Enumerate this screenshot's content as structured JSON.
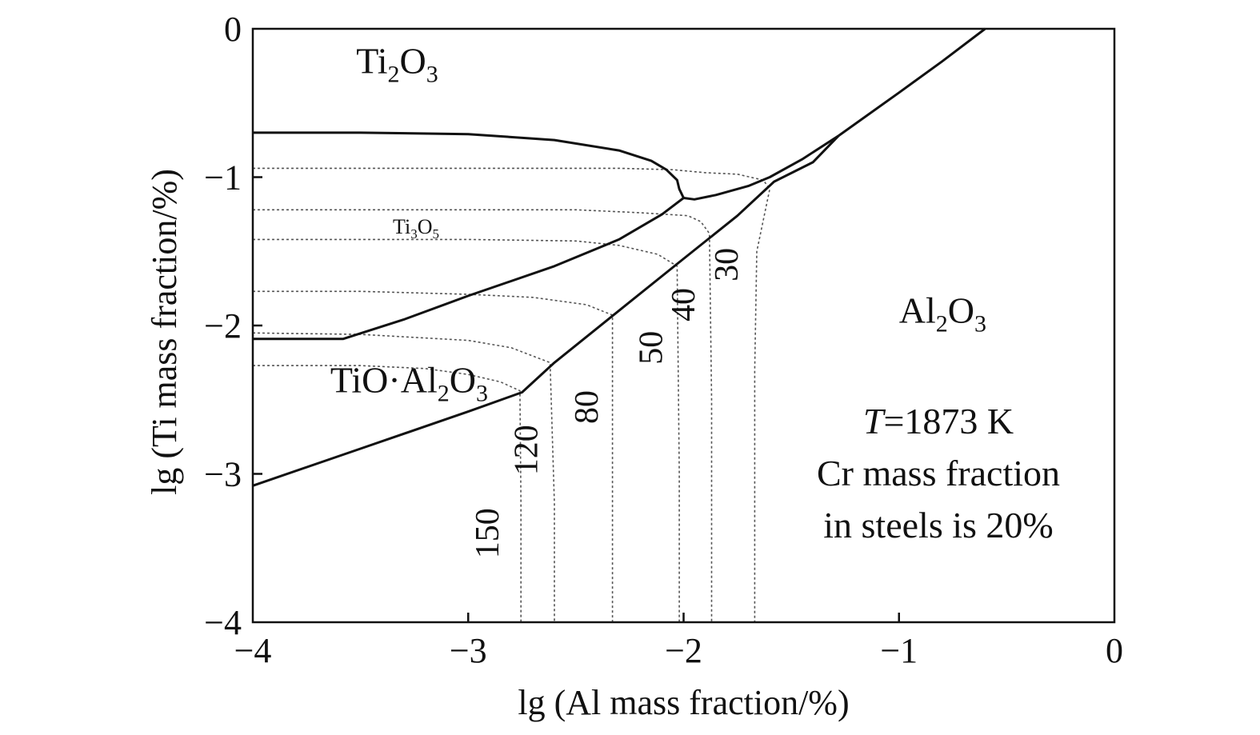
{
  "chart_data": {
    "type": "line",
    "xlabel": "lg (Al mass fraction/%)",
    "ylabel": "lg (Ti mass fraction/%)",
    "xlim": [
      -4,
      0
    ],
    "ylim": [
      -4,
      0
    ],
    "x_ticks": [
      -4,
      -3,
      -2,
      -1,
      0
    ],
    "y_ticks": [
      0,
      -1,
      -2,
      -3,
      -4
    ],
    "x_tick_labels": [
      "−4",
      "−3",
      "−2",
      "−1",
      "0"
    ],
    "y_tick_labels": [
      "0",
      "−1",
      "−2",
      "−3",
      "−4"
    ],
    "grid": false,
    "regions": [
      {
        "id": "ti2o3",
        "main": "Ti",
        "sub1": "2",
        "mid": "O",
        "sub2": "3",
        "x": -3.52,
        "y": -0.3,
        "size": 46
      },
      {
        "id": "ti3o5",
        "main": "Ti",
        "sub1": "3",
        "mid": "O",
        "sub2": "5",
        "x": -3.35,
        "y": -1.38,
        "size": 26
      },
      {
        "id": "al2o3",
        "main": "Al",
        "sub1": "2",
        "mid": "O",
        "sub2": "3",
        "x": -1.0,
        "y": -1.98,
        "size": 46
      },
      {
        "id": "tio-al2o3",
        "main": "TiO·Al",
        "sub1": "2",
        "mid": "O",
        "sub2": "3",
        "x": -3.64,
        "y": -2.45,
        "size": 46
      }
    ],
    "annotations": {
      "temperature_var": "T",
      "temperature_rest": "=1873 K",
      "line2": "Cr mass fraction",
      "line3": "in steels is 20%"
    },
    "boundary_series": [
      {
        "id": "ti2o3-ti3o5",
        "x": [
          -4.0,
          -3.5,
          -3.0,
          -2.6,
          -2.3,
          -2.15,
          -2.08,
          -2.03,
          -2.02,
          -2.0
        ],
        "y": [
          -0.7,
          -0.7,
          -0.71,
          -0.75,
          -0.82,
          -0.89,
          -0.95,
          -1.02,
          -1.08,
          -1.14
        ]
      },
      {
        "id": "upper-wedge",
        "x": [
          -2.0,
          -1.95,
          -1.85,
          -1.7,
          -1.6,
          -1.45,
          -1.28
        ],
        "y": [
          -1.14,
          -1.15,
          -1.12,
          -1.06,
          -1.0,
          -0.88,
          -0.72
        ]
      },
      {
        "id": "ti3o5-tio-al2o3",
        "x": [
          -4.0,
          -3.58,
          -3.3,
          -3.0,
          -2.6,
          -2.3,
          -2.1,
          -2.0
        ],
        "y": [
          -2.09,
          -2.09,
          -1.96,
          -1.8,
          -1.6,
          -1.42,
          -1.25,
          -1.14
        ]
      },
      {
        "id": "tio-al2o3-al2o3",
        "x": [
          -4.0,
          -3.5,
          -3.0,
          -2.75,
          -2.6,
          -2.3,
          -2.0,
          -1.75,
          -1.58,
          -1.4,
          -1.28
        ],
        "y": [
          -3.08,
          -2.83,
          -2.58,
          -2.45,
          -2.25,
          -1.9,
          -1.55,
          -1.26,
          -1.03,
          -0.9,
          -0.72
        ]
      },
      {
        "id": "al2o3-upper",
        "x": [
          -1.28,
          -1.0,
          -0.8,
          -0.6
        ],
        "y": [
          -0.72,
          -0.43,
          -0.22,
          0.0
        ]
      }
    ],
    "contour_series": [
      {
        "name": "150",
        "x": [
          -4.0,
          -3.5,
          -3.2,
          -3.0,
          -2.85,
          -2.76,
          -2.755,
          -2.755
        ],
        "y": [
          -2.27,
          -2.27,
          -2.29,
          -2.33,
          -2.38,
          -2.44,
          -3.2,
          -4.0
        ]
      },
      {
        "name": "120",
        "x": [
          -4.0,
          -3.5,
          -3.0,
          -2.8,
          -2.62,
          -2.6,
          -2.6
        ],
        "y": [
          -2.05,
          -2.06,
          -2.1,
          -2.15,
          -2.25,
          -3.2,
          -4.0
        ]
      },
      {
        "name": "80",
        "x": [
          -4.0,
          -3.5,
          -3.0,
          -2.7,
          -2.45,
          -2.33,
          -2.33,
          -2.33
        ],
        "y": [
          -1.77,
          -1.77,
          -1.79,
          -1.81,
          -1.86,
          -1.93,
          -3.2,
          -4.0
        ]
      },
      {
        "name": "50",
        "x": [
          -4.0,
          -3.5,
          -3.0,
          -2.5,
          -2.3,
          -2.12,
          -2.03,
          -2.02,
          -2.02
        ],
        "y": [
          -1.42,
          -1.42,
          -1.42,
          -1.43,
          -1.46,
          -1.52,
          -1.6,
          -3.0,
          -4.0
        ]
      },
      {
        "name": "40",
        "x": [
          -4.0,
          -3.5,
          -3.0,
          -2.5,
          -2.2,
          -1.98,
          -1.92,
          -1.88,
          -1.87,
          -1.87
        ],
        "y": [
          -1.22,
          -1.22,
          -1.22,
          -1.22,
          -1.24,
          -1.26,
          -1.3,
          -1.38,
          -2.5,
          -4.0
        ]
      },
      {
        "name": "30",
        "x": [
          -4.0,
          -3.5,
          -3.0,
          -2.6,
          -2.3,
          -2.05,
          -1.9,
          -1.75,
          -1.63,
          -1.6,
          -1.66,
          -1.67,
          -1.67
        ],
        "y": [
          -0.94,
          -0.94,
          -0.94,
          -0.94,
          -0.94,
          -0.95,
          -0.97,
          -0.98,
          -1.02,
          -1.08,
          -1.5,
          -2.3,
          -4.0
        ]
      }
    ],
    "contour_labels": [
      {
        "text": "150",
        "x": -2.86,
        "y": -3.4
      },
      {
        "text": "120",
        "x": -2.68,
        "y": -2.84
      },
      {
        "text": "80",
        "x": -2.4,
        "y": -2.55
      },
      {
        "text": "50",
        "x": -2.1,
        "y": -2.15
      },
      {
        "text": "40",
        "x": -1.95,
        "y": -1.86
      },
      {
        "text": "30",
        "x": -1.75,
        "y": -1.59
      }
    ]
  }
}
